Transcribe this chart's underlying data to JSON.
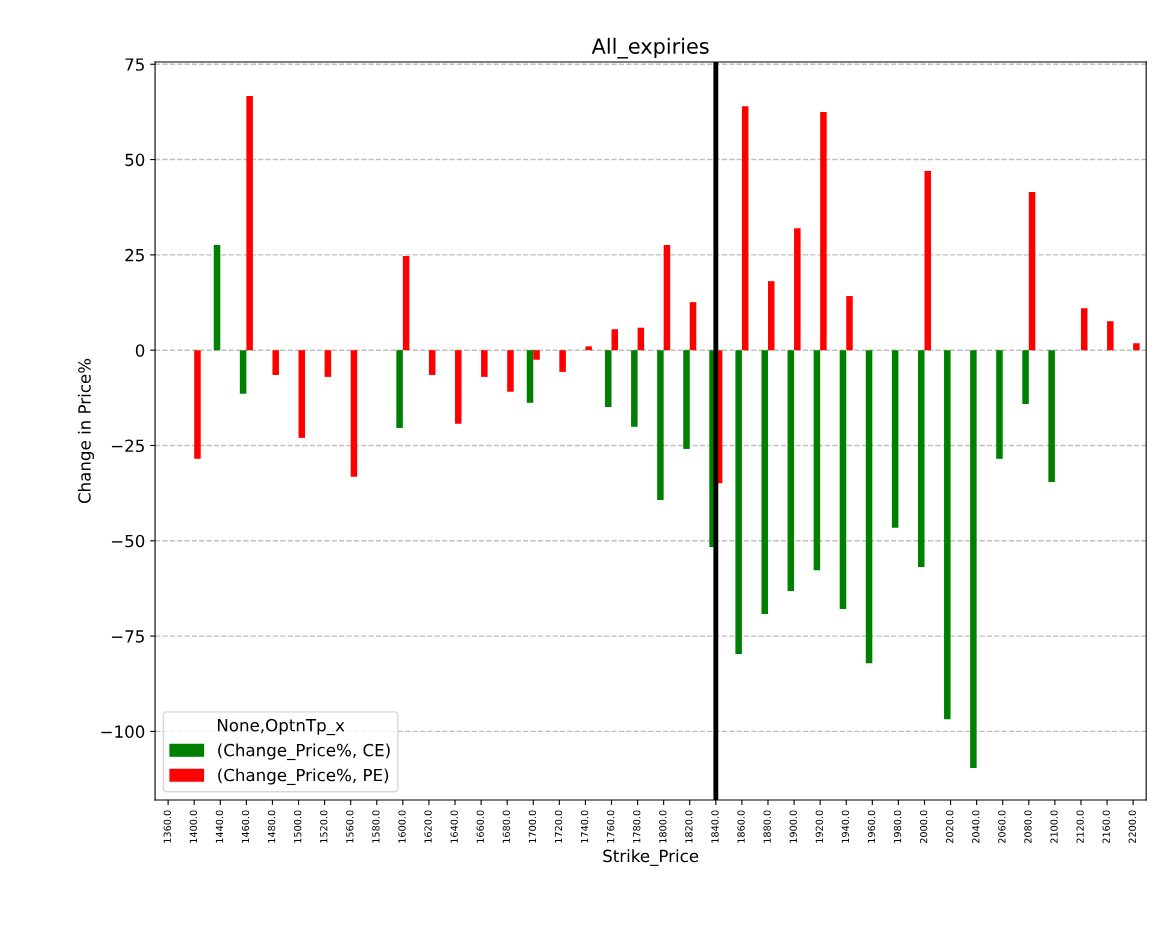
{
  "chart_data": {
    "type": "bar",
    "title": "All_expiries",
    "xlabel": "Strike_Price",
    "ylabel": "Change in Price%",
    "legend_title": "None,OptnTp_x",
    "categories": [
      "1360.0",
      "1400.0",
      "1440.0",
      "1460.0",
      "1480.0",
      "1500.0",
      "1520.0",
      "1560.0",
      "1580.0",
      "1600.0",
      "1620.0",
      "1640.0",
      "1660.0",
      "1680.0",
      "1700.0",
      "1720.0",
      "1740.0",
      "1760.0",
      "1780.0",
      "1800.0",
      "1820.0",
      "1840.0",
      "1860.0",
      "1880.0",
      "1900.0",
      "1920.0",
      "1940.0",
      "1960.0",
      "1980.0",
      "2000.0",
      "2020.0",
      "2040.0",
      "2060.0",
      "2080.0",
      "2100.0",
      "2120.0",
      "2160.0",
      "2200.0"
    ],
    "series": [
      {
        "name": "(Change_Price%, CE)",
        "color": "#008000",
        "values": [
          null,
          null,
          27.6,
          -11.4,
          null,
          null,
          null,
          null,
          null,
          -20.4,
          null,
          null,
          null,
          null,
          -13.8,
          null,
          null,
          -14.9,
          -20.1,
          -39.3,
          -25.9,
          -51.6,
          -79.7,
          -69.2,
          -63.2,
          -57.7,
          -67.9,
          -82.1,
          -46.6,
          -56.9,
          -96.8,
          -109.6,
          -28.5,
          -14.1,
          -34.6,
          null,
          null,
          null
        ]
      },
      {
        "name": "(Change_Price%, PE)",
        "color": "#ff0000",
        "values": [
          null,
          -28.5,
          null,
          66.7,
          -6.5,
          -23.0,
          -7.0,
          -33.2,
          null,
          24.7,
          -6.5,
          -19.3,
          -7.0,
          -10.9,
          -2.5,
          -5.7,
          1.0,
          5.5,
          5.9,
          27.6,
          12.6,
          -34.9,
          64.0,
          18.1,
          32.0,
          62.5,
          14.2,
          null,
          null,
          47.0,
          null,
          null,
          null,
          41.5,
          null,
          11.0,
          7.6,
          1.8
        ]
      }
    ],
    "ylim": [
      -118,
      75.6
    ],
    "yticks": [
      {
        "value": -100,
        "label": "−100"
      },
      {
        "value": -75,
        "label": "−75"
      },
      {
        "value": -50,
        "label": "−50"
      },
      {
        "value": -25,
        "label": "−25"
      },
      0,
      25,
      50,
      75
    ],
    "grid": "y",
    "legend": "bottom left",
    "ref_lines": [
      {
        "axis": "x",
        "value": "1840.0",
        "color": "#000000"
      }
    ]
  }
}
